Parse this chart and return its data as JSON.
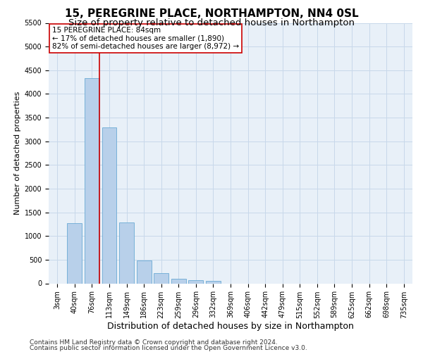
{
  "title1": "15, PEREGRINE PLACE, NORTHAMPTON, NN4 0SL",
  "title2": "Size of property relative to detached houses in Northampton",
  "xlabel": "Distribution of detached houses by size in Northampton",
  "ylabel": "Number of detached properties",
  "categories": [
    "3sqm",
    "40sqm",
    "76sqm",
    "113sqm",
    "149sqm",
    "186sqm",
    "223sqm",
    "259sqm",
    "296sqm",
    "332sqm",
    "369sqm",
    "406sqm",
    "442sqm",
    "479sqm",
    "515sqm",
    "552sqm",
    "589sqm",
    "625sqm",
    "662sqm",
    "698sqm",
    "735sqm"
  ],
  "values": [
    0,
    1270,
    4340,
    3300,
    1290,
    490,
    220,
    90,
    70,
    55,
    0,
    0,
    0,
    0,
    0,
    0,
    0,
    0,
    0,
    0,
    0
  ],
  "bar_color": "#b8d0ea",
  "bar_edge_color": "#6aaad4",
  "grid_color": "#c8d8ea",
  "background_color": "#e8f0f8",
  "vline_color": "#cc0000",
  "vline_index": 2,
  "annotation_line1": "15 PEREGRINE PLACE: 84sqm",
  "annotation_line2": "← 17% of detached houses are smaller (1,890)",
  "annotation_line3": "82% of semi-detached houses are larger (8,972) →",
  "annotation_box_color": "#ffffff",
  "annotation_box_edge_color": "#cc0000",
  "ylim": [
    0,
    5500
  ],
  "yticks": [
    0,
    500,
    1000,
    1500,
    2000,
    2500,
    3000,
    3500,
    4000,
    4500,
    5000,
    5500
  ],
  "footer1": "Contains HM Land Registry data © Crown copyright and database right 2024.",
  "footer2": "Contains public sector information licensed under the Open Government Licence v3.0.",
  "title1_fontsize": 11,
  "title2_fontsize": 9.5,
  "xlabel_fontsize": 9,
  "ylabel_fontsize": 8,
  "tick_fontsize": 7,
  "annotation_fontsize": 7.5,
  "footer_fontsize": 6.5
}
